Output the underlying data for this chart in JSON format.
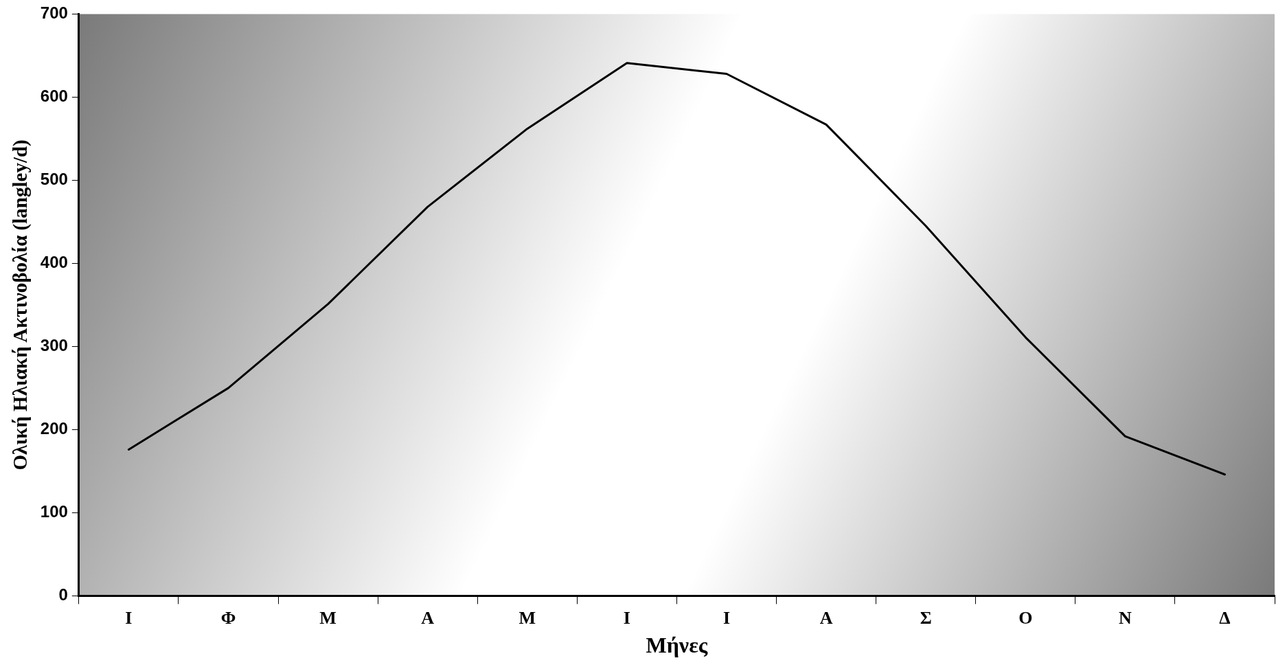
{
  "chart_data": {
    "type": "line",
    "xlabel": "Μήνες",
    "ylabel": "Ολική Ηλιακή Ακτινοβολία (langley/d)",
    "categories": [
      "Ι",
      "Φ",
      "Μ",
      "Α",
      "Μ",
      "Ι",
      "Ι",
      "Α",
      "Σ",
      "Ο",
      "Ν",
      "Δ"
    ],
    "series": [
      {
        "color": "#000000",
        "values": [
          176,
          250,
          351,
          468,
          562,
          641,
          628,
          567,
          445,
          311,
          192,
          146
        ]
      }
    ],
    "ylim": [
      0,
      700
    ],
    "yticks": [
      0,
      100,
      200,
      300,
      400,
      500,
      600,
      700
    ],
    "grid": false,
    "legend": false,
    "marker": "none",
    "line_style": "solid"
  }
}
